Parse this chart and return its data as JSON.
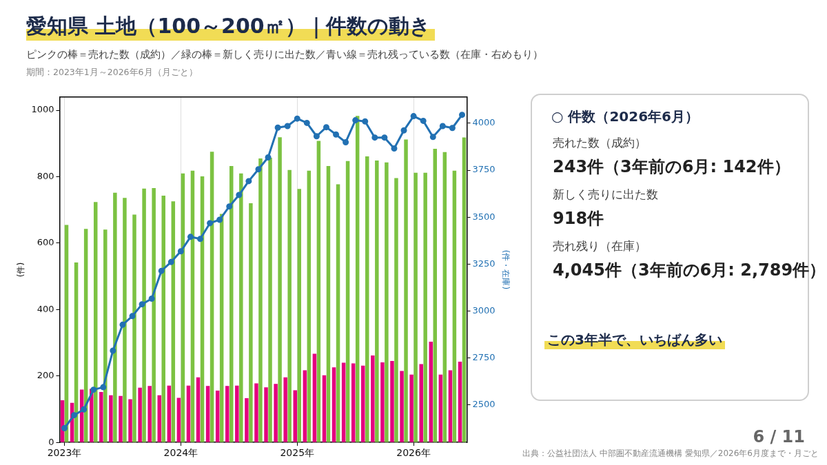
{
  "chart_data": {
    "type": "bar",
    "title": "愛知県 土地（100～200㎡）｜件数の動き",
    "subtitle": "ピンクの棒＝売れた数（成約）／緑の棒＝新しく売りに出た数／青い線＝売れ残っている数（在庫・右めもり）",
    "ylabel": "(件)",
    "y2label": "(件・在庫)",
    "categories": [
      "2023年",
      null,
      null,
      null,
      null,
      null,
      null,
      null,
      null,
      null,
      null,
      null,
      "2024年",
      null,
      null,
      null,
      null,
      null,
      null,
      null,
      null,
      null,
      null,
      null,
      "2025年",
      null,
      null,
      null,
      null,
      null,
      null,
      null,
      null,
      null,
      null,
      null,
      "2026年",
      null,
      null,
      null,
      null,
      null
    ],
    "series": [
      {
        "color": "#e4007f",
        "values": [
          127,
          119,
          159,
          161,
          152,
          142,
          140,
          130,
          165,
          170,
          142,
          171,
          134,
          171,
          196,
          170,
          156,
          170,
          171,
          133,
          178,
          166,
          176,
          196,
          157,
          217,
          267,
          202,
          226,
          240,
          238,
          231,
          262,
          241,
          245,
          215,
          204,
          236,
          303,
          204,
          217,
          243
        ]
      },
      {
        "color": "#7cc242",
        "values": [
          655,
          542,
          643,
          724,
          641,
          752,
          736,
          686,
          764,
          766,
          743,
          726,
          810,
          818,
          801,
          875,
          688,
          832,
          810,
          720,
          855,
          857,
          919,
          820,
          763,
          818,
          908,
          832,
          777,
          847,
          983,
          861,
          849,
          843,
          796,
          912,
          812,
          812,
          884,
          874,
          818,
          918
        ]
      },
      {
        "type": "line",
        "axis": "y2",
        "color": "#2271b3",
        "values": [
          2376,
          2445,
          2476,
          2581,
          2594,
          2789,
          2927,
          2973,
          3036,
          3066,
          3214,
          3261,
          3318,
          3395,
          3384,
          3468,
          3486,
          3557,
          3618,
          3692,
          3755,
          3818,
          3977,
          3985,
          4025,
          4002,
          3931,
          3979,
          3940,
          3899,
          4016,
          4010,
          3924,
          3924,
          3866,
          3962,
          4038,
          4013,
          3927,
          3985,
          3975,
          4045
        ]
      }
    ],
    "ylim": [
      0,
      1040
    ],
    "yticks": [
      0,
      200,
      400,
      600,
      800,
      1000
    ],
    "y2lim": [
      2300,
      4140
    ],
    "y2ticks": [
      2500,
      2750,
      3000,
      3250,
      3500,
      3750,
      4000
    ],
    "grid": "x",
    "legend": false,
    "marker": "circle",
    "line_style": "solid",
    "annotations": [
      "期間：2023年1月～2026年6月（月ごと）",
      "○ 件数（2026年6月）",
      "売れた数（成約）",
      "243件（3年前の6月: 142件）",
      "新しく売りに出た数",
      "918件",
      "売れ残り（在庫）",
      "4,045件（3年前の6月: 2,789件）",
      "この3年半で、いちばん多い",
      "6 / 11",
      "出典：公益社団法人 中部圏不動産流通機構 愛知県／2026年6月度まで・月ごと"
    ]
  }
}
